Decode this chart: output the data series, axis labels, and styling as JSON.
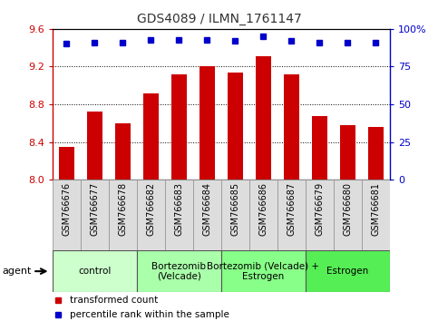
{
  "title": "GDS4089 / ILMN_1761147",
  "samples": [
    "GSM766676",
    "GSM766677",
    "GSM766678",
    "GSM766682",
    "GSM766683",
    "GSM766684",
    "GSM766685",
    "GSM766686",
    "GSM766687",
    "GSM766679",
    "GSM766680",
    "GSM766681"
  ],
  "transformed_counts": [
    8.35,
    8.72,
    8.6,
    8.92,
    9.12,
    9.2,
    9.14,
    9.31,
    9.12,
    8.68,
    8.58,
    8.56
  ],
  "percentile_ranks": [
    90,
    91,
    91,
    93,
    93,
    93,
    92,
    95,
    92,
    91,
    91,
    91
  ],
  "ylim_left": [
    8.0,
    9.6
  ],
  "ylim_right": [
    0,
    100
  ],
  "yticks_left": [
    8.0,
    8.4,
    8.8,
    9.2,
    9.6
  ],
  "yticks_right": [
    0,
    25,
    50,
    75,
    100
  ],
  "bar_color": "#cc0000",
  "dot_color": "#0000cc",
  "agent_groups": [
    {
      "label": "control",
      "start": 0,
      "end": 3,
      "color": "#ccffcc"
    },
    {
      "label": "Bortezomib\n(Velcade)",
      "start": 3,
      "end": 6,
      "color": "#aaffaa"
    },
    {
      "label": "Bortezomib (Velcade) +\nEstrogen",
      "start": 6,
      "end": 9,
      "color": "#88ff88"
    },
    {
      "label": "Estrogen",
      "start": 9,
      "end": 12,
      "color": "#55ee55"
    }
  ],
  "legend_items": [
    {
      "label": "transformed count",
      "color": "#cc0000"
    },
    {
      "label": "percentile rank within the sample",
      "color": "#0000cc"
    }
  ],
  "agent_label": "agent",
  "title_color": "#333333",
  "left_axis_color": "#cc0000",
  "right_axis_color": "#0000cc",
  "xlabels_bg": "#cccccc",
  "xlabels_box": "#dddddd"
}
